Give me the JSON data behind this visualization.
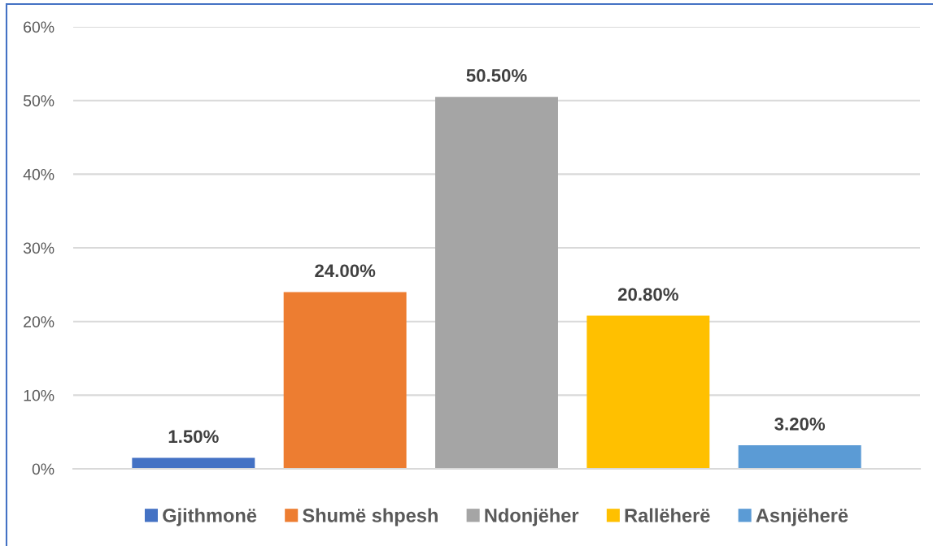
{
  "chart_data": {
    "type": "bar",
    "categories": [
      null
    ],
    "series": [
      {
        "name": "Gjithmonë",
        "color": "#4472c4",
        "values": [
          1.5
        ],
        "value_labels": [
          "1.50%"
        ]
      },
      {
        "name": "Shumë shpesh",
        "color": "#ed7d31",
        "values": [
          24.0
        ],
        "value_labels": [
          "24.00%"
        ]
      },
      {
        "name": "Ndonjëher",
        "color": "#a5a5a5",
        "values": [
          50.5
        ],
        "value_labels": [
          "50.50%"
        ]
      },
      {
        "name": "Rallëherë",
        "color": "#ffc000",
        "values": [
          20.8
        ],
        "value_labels": [
          "20.80%"
        ]
      },
      {
        "name": "Asnjëherë",
        "color": "#5b9bd5",
        "values": [
          3.2
        ],
        "value_labels": [
          "3.20%"
        ]
      }
    ],
    "ylim": [
      0,
      60
    ],
    "yticks": [
      {
        "value": 0,
        "label": "0%"
      },
      {
        "value": 10,
        "label": "10%"
      },
      {
        "value": 20,
        "label": "20%"
      },
      {
        "value": 30,
        "label": "30%"
      },
      {
        "value": 40,
        "label": "40%"
      },
      {
        "value": 50,
        "label": "50%"
      },
      {
        "value": 60,
        "label": "60%"
      }
    ],
    "grid": "y",
    "legend": "bottom",
    "tick_labels": "y"
  }
}
